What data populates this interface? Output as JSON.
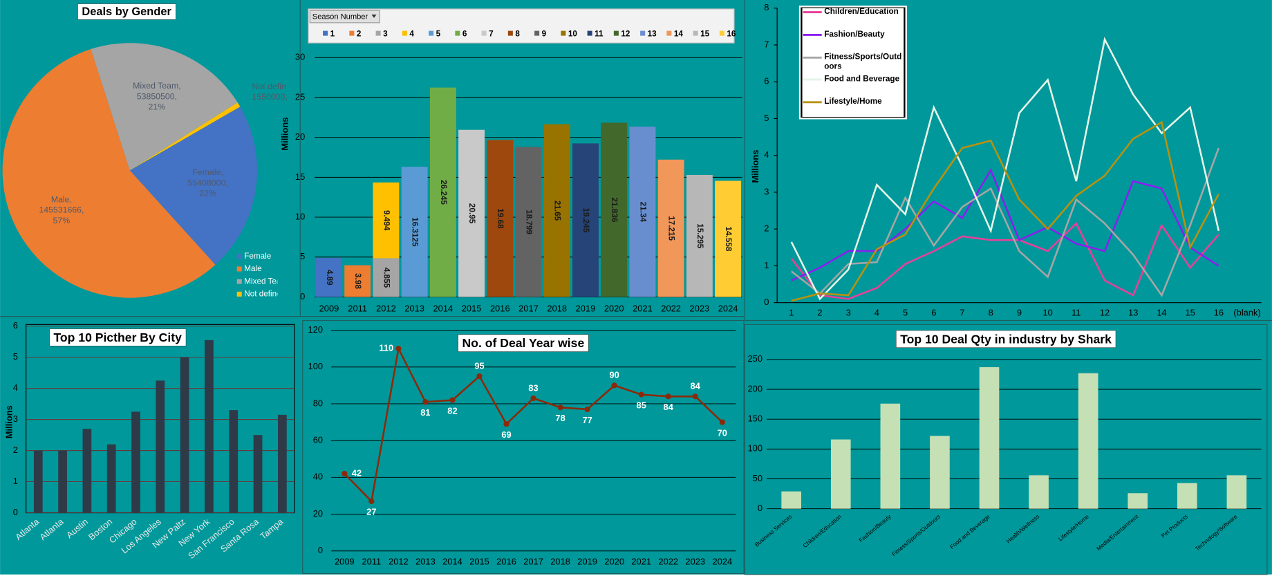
{
  "chart_data": {
    "charts": [
      {
        "type": "pie",
        "title": "Deals by Gender",
        "categories": [
          "Female",
          "Male",
          "Mixed Team",
          "Not defined"
        ],
        "values": [
          55408000,
          145531666,
          53850500,
          1550000
        ],
        "value_labels": [
          [
            "Female,",
            "55408000,",
            "22%"
          ],
          [
            "Male,",
            "145531666,",
            "57%"
          ],
          [
            "Mixed Team,",
            "53850500,",
            "21%"
          ],
          [
            "Not defin",
            "1550000,"
          ]
        ],
        "colors": [
          "#4472c4",
          "#ed7d31",
          "#a5a5a5",
          "#ffc000"
        ],
        "legend": "right"
      },
      {
        "type": "stacked_bar",
        "legend_title": "Season Number",
        "ylabel": "Millions",
        "categories": [
          2009,
          2011,
          2012,
          2013,
          2014,
          2015,
          2016,
          2017,
          2018,
          2019,
          2020,
          2021,
          2022,
          2023,
          2024
        ],
        "ylim": [
          0,
          30
        ],
        "yticks": [
          0,
          5,
          10,
          15,
          20,
          25,
          30
        ],
        "grid": true,
        "legend": "top",
        "series": [
          {
            "name": "1",
            "color": "#4472c4",
            "values": [
              4.89,
              null,
              null,
              null,
              null,
              null,
              null,
              null,
              null,
              null,
              null,
              null,
              null,
              null,
              null
            ]
          },
          {
            "name": "2",
            "color": "#ed7d31",
            "values": [
              null,
              3.98,
              null,
              null,
              null,
              null,
              null,
              null,
              null,
              null,
              null,
              null,
              null,
              null,
              null
            ]
          },
          {
            "name": "3",
            "color": "#a5a5a5",
            "values": [
              null,
              null,
              4.855,
              null,
              null,
              null,
              null,
              null,
              null,
              null,
              null,
              null,
              null,
              null,
              null
            ]
          },
          {
            "name": "4",
            "color": "#ffc000",
            "values": [
              null,
              null,
              9.494,
              null,
              null,
              null,
              null,
              null,
              null,
              null,
              null,
              null,
              null,
              null,
              null
            ]
          },
          {
            "name": "5",
            "color": "#5b9bd5",
            "values": [
              null,
              null,
              null,
              16.3125,
              null,
              null,
              null,
              null,
              null,
              null,
              null,
              null,
              null,
              null,
              null
            ]
          },
          {
            "name": "6",
            "color": "#70ad47",
            "values": [
              null,
              null,
              null,
              null,
              26.245,
              null,
              null,
              null,
              null,
              null,
              null,
              null,
              null,
              null,
              null
            ]
          },
          {
            "name": "7",
            "color": "#c9c9c9",
            "values": [
              null,
              null,
              null,
              null,
              null,
              20.95,
              null,
              null,
              null,
              null,
              null,
              null,
              null,
              null,
              null
            ]
          },
          {
            "name": "8",
            "color": "#9e480e",
            "values": [
              null,
              null,
              null,
              null,
              null,
              null,
              19.68,
              null,
              null,
              null,
              null,
              null,
              null,
              null,
              null
            ]
          },
          {
            "name": "9",
            "color": "#636363",
            "values": [
              null,
              null,
              null,
              null,
              null,
              null,
              null,
              18.799,
              null,
              null,
              null,
              null,
              null,
              null,
              null
            ]
          },
          {
            "name": "10",
            "color": "#997300",
            "values": [
              null,
              null,
              null,
              null,
              null,
              null,
              null,
              null,
              21.65,
              null,
              null,
              null,
              null,
              null,
              null
            ]
          },
          {
            "name": "11",
            "color": "#264478",
            "values": [
              null,
              null,
              null,
              null,
              null,
              null,
              null,
              null,
              null,
              19.245,
              null,
              null,
              null,
              null,
              null
            ]
          },
          {
            "name": "12",
            "color": "#43682b",
            "values": [
              null,
              null,
              null,
              null,
              null,
              null,
              null,
              null,
              null,
              null,
              21.836,
              null,
              null,
              null,
              null
            ]
          },
          {
            "name": "13",
            "color": "#698ed0",
            "values": [
              null,
              null,
              null,
              null,
              null,
              null,
              null,
              null,
              null,
              null,
              null,
              21.34,
              null,
              null,
              null
            ]
          },
          {
            "name": "14",
            "color": "#f1975a",
            "values": [
              null,
              null,
              null,
              null,
              null,
              null,
              null,
              null,
              null,
              null,
              null,
              null,
              17.215,
              null,
              null
            ]
          },
          {
            "name": "15",
            "color": "#b7b7b7",
            "values": [
              null,
              null,
              null,
              null,
              null,
              null,
              null,
              null,
              null,
              null,
              null,
              null,
              null,
              15.295,
              null
            ]
          },
          {
            "name": "16",
            "color": "#ffcd33",
            "values": [
              null,
              null,
              null,
              null,
              null,
              null,
              null,
              null,
              null,
              null,
              null,
              null,
              null,
              null,
              14.558
            ]
          }
        ]
      },
      {
        "type": "line",
        "ylabel": "Millions",
        "categories": [
          1,
          2,
          3,
          4,
          5,
          6,
          7,
          8,
          9,
          10,
          11,
          12,
          13,
          14,
          15,
          16,
          "(blank)"
        ],
        "ylim": [
          0,
          8
        ],
        "yticks": [
          0,
          1,
          2,
          3,
          4,
          5,
          6,
          7,
          8
        ],
        "grid": false,
        "legend": "top-left",
        "series": [
          {
            "name": "Children/Education",
            "color": "#e8409a",
            "values": [
              1.2,
              0.2,
              0.1,
              0.4,
              1.05,
              1.4,
              1.8,
              1.7,
              1.7,
              1.4,
              2.15,
              0.6,
              0.2,
              2.1,
              0.95,
              1.85,
              null
            ]
          },
          {
            "name": "Fashion/Beauty",
            "color": "#8a1ef0",
            "values": [
              0.6,
              0.95,
              1.4,
              1.4,
              2.0,
              2.75,
              2.3,
              3.6,
              1.7,
              2.05,
              1.6,
              1.4,
              3.3,
              3.1,
              1.5,
              1.0,
              null
            ]
          },
          {
            "name": "Fitness/Sports/Outdoors",
            "color": "#a6a6a6",
            "values": [
              0.85,
              0.25,
              1.05,
              1.1,
              2.85,
              1.55,
              2.6,
              3.1,
              1.4,
              0.7,
              2.8,
              2.15,
              1.3,
              0.2,
              2.1,
              4.2,
              null
            ]
          },
          {
            "name": "Food and Beverage",
            "color": "#e6f4e8",
            "values": [
              1.65,
              0.1,
              0.9,
              3.2,
              2.4,
              5.3,
              3.7,
              1.95,
              5.15,
              6.05,
              3.3,
              7.15,
              5.65,
              4.6,
              5.3,
              1.95,
              null
            ]
          },
          {
            "name": "Lifestyle/Home",
            "color": "#b8920f",
            "values": [
              0.05,
              0.25,
              0.2,
              1.45,
              1.85,
              3.1,
              4.2,
              4.4,
              2.8,
              2.0,
              2.9,
              3.45,
              4.45,
              4.9,
              1.5,
              2.95,
              null
            ]
          }
        ]
      },
      {
        "type": "bar",
        "title": "Top 10 Picther By City",
        "ylabel": "Millions",
        "categories": [
          "Atlanta",
          "Atlanta",
          "Austin",
          "Boston",
          "Chicago",
          "Los Angeles",
          "New Paltz",
          "New York",
          "San Francisco",
          "Santa Rosa",
          "Tampa"
        ],
        "values": [
          2.0,
          2.0,
          2.7,
          2.2,
          3.25,
          4.25,
          5.0,
          5.55,
          3.3,
          2.5,
          3.15
        ],
        "color": "#2e3a48",
        "ylim": [
          0,
          6
        ],
        "yticks": [
          0,
          1,
          2,
          3,
          4,
          5,
          6
        ],
        "grid": true
      },
      {
        "type": "line",
        "title": "No. of Deal Year wise",
        "categories": [
          2009,
          2011,
          2012,
          2013,
          2014,
          2015,
          2016,
          2017,
          2018,
          2019,
          2020,
          2021,
          2022,
          2023,
          2024
        ],
        "ylim": [
          0,
          120
        ],
        "yticks": [
          0,
          20,
          40,
          60,
          80,
          100,
          120
        ],
        "grid": true,
        "series": [
          {
            "name": null,
            "color": "#8b2a0a",
            "values": [
              42,
              27,
              110,
              81,
              82,
              95,
              69,
              83,
              78,
              77,
              90,
              85,
              84,
              84,
              70
            ]
          }
        ]
      },
      {
        "type": "bar",
        "title": "Top 10 Deal Qty in industry by Shark",
        "categories": [
          "Business Services",
          "Children/Education",
          "Fashion/Beauty",
          "Fitness/Sports/Outdoors",
          "Food and Beverage",
          "Health/Wellness",
          "Lifestyle/Home",
          "Media/Entertainment",
          "Pet Products",
          "Technology/Software"
        ],
        "values": [
          29,
          116,
          176,
          122,
          237,
          56,
          227,
          26,
          43,
          56
        ],
        "color": "#c5e0b4",
        "ylim": [
          0,
          250
        ],
        "yticks": [
          0,
          50,
          100,
          150,
          200,
          250
        ],
        "grid": true
      }
    ]
  }
}
